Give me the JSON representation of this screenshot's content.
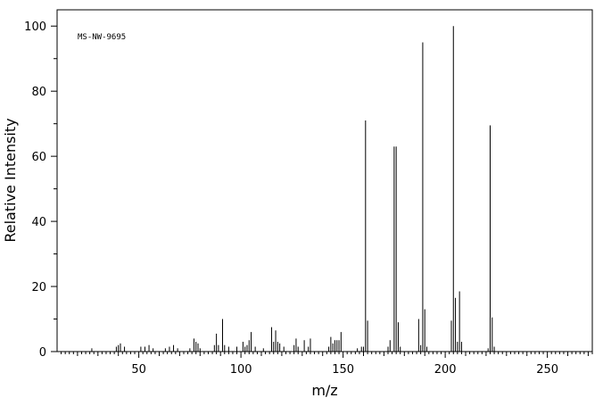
{
  "chart_data": {
    "type": "bar",
    "title": "",
    "annotation": "MS-NW-9695",
    "xlabel": "m/z",
    "ylabel": "Relative Intensity",
    "xlim": [
      10,
      272
    ],
    "ylim": [
      0,
      105
    ],
    "x_ticks": [
      50,
      100,
      150,
      200,
      250
    ],
    "y_ticks": [
      0,
      20,
      40,
      60,
      80,
      100
    ],
    "grid": false,
    "x": [
      27,
      39,
      40,
      41,
      43,
      51,
      53,
      55,
      57,
      63,
      65,
      67,
      69,
      75,
      77,
      78,
      79,
      80,
      87,
      88,
      89,
      91,
      92,
      94,
      98,
      101,
      102,
      103,
      104,
      105,
      107,
      111,
      115,
      116,
      117,
      118,
      119,
      121,
      126,
      127,
      128,
      131,
      133,
      134,
      143,
      144,
      145,
      146,
      147,
      148,
      149,
      157,
      159,
      160,
      161,
      162,
      172,
      173,
      175,
      176,
      177,
      178,
      187,
      188,
      189,
      190,
      191,
      203,
      204,
      205,
      206,
      207,
      208,
      221,
      222,
      223,
      224
    ],
    "values": [
      1,
      1.5,
      2,
      2.5,
      1.5,
      1.5,
      1.5,
      2,
      1,
      1,
      1.5,
      2,
      1,
      1,
      4,
      3,
      2.5,
      1,
      2,
      5.5,
      2,
      10,
      2,
      1.5,
      1.5,
      3,
      1.5,
      2,
      3.5,
      6,
      1.5,
      1,
      7.5,
      3,
      6.5,
      3,
      2.5,
      1.5,
      2,
      4,
      1.5,
      3.5,
      1.5,
      4,
      1.5,
      4.5,
      2.5,
      3.5,
      3.5,
      3.5,
      6,
      1,
      1.5,
      1.5,
      71,
      9.5,
      1.5,
      3.5,
      63,
      63,
      9,
      1.5,
      10,
      2,
      95,
      13,
      1.5,
      9.5,
      100,
      16.5,
      3,
      18.5,
      3,
      1,
      69.5,
      10.5,
      1.5
    ]
  }
}
